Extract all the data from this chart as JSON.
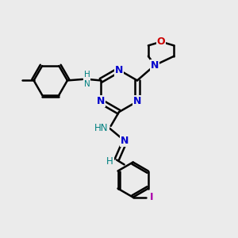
{
  "bg_color": "#ebebeb",
  "bond_color": "#000000",
  "N_color": "#0000cc",
  "O_color": "#cc0000",
  "I_color": "#aa00aa",
  "H_color": "#008080",
  "bond_width": 1.8,
  "figsize": [
    3.0,
    3.0
  ],
  "dpi": 100,
  "xlim": [
    0,
    10
  ],
  "ylim": [
    0,
    10
  ]
}
